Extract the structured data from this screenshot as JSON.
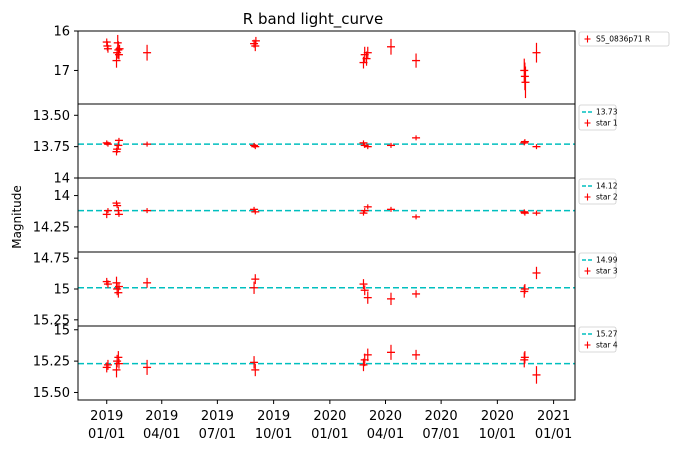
{
  "chart_data": {
    "type": "scatter",
    "title": "R band light_curve",
    "ylabel": "Magnitude",
    "x_ticks": [
      {
        "date": "2019-01-01",
        "label": [
          "2019",
          "01/01"
        ]
      },
      {
        "date": "2019-04-01",
        "label": [
          "2019",
          "04/01"
        ]
      },
      {
        "date": "2019-07-01",
        "label": [
          "2019",
          "07/01"
        ]
      },
      {
        "date": "2019-10-01",
        "label": [
          "2019",
          "10/01"
        ]
      },
      {
        "date": "2020-01-01",
        "label": [
          "2020",
          "01/01"
        ]
      },
      {
        "date": "2020-04-01",
        "label": [
          "2020",
          "04/01"
        ]
      },
      {
        "date": "2020-07-01",
        "label": [
          "2020",
          "07/01"
        ]
      },
      {
        "date": "2020-10-01",
        "label": [
          "2020",
          "10/01"
        ]
      },
      {
        "date": "2021-01-01",
        "label": [
          "2021",
          "01/01"
        ]
      }
    ],
    "xlim": [
      "2018-11-15",
      "2021-02-05"
    ],
    "y_inverted": true,
    "marker_color": "#ff0000",
    "reference_line_color": "#00bfbf",
    "panels": [
      {
        "series_name": "S5_0836p71 R",
        "reference_value": null,
        "reference_label": "",
        "ylim": [
          16.0,
          17.85
        ],
        "yticks": [
          16,
          17
        ],
        "points": [
          {
            "x": "2019-01-01",
            "y": 16.28,
            "err": 0.09
          },
          {
            "x": "2019-01-02",
            "y": 16.38,
            "err": 0.12
          },
          {
            "x": "2019-01-03",
            "y": 16.45,
            "err": 0.1
          },
          {
            "x": "2019-01-17",
            "y": 16.75,
            "err": 0.18
          },
          {
            "x": "2019-01-18",
            "y": 16.55,
            "err": 0.15
          },
          {
            "x": "2019-01-19",
            "y": 16.3,
            "err": 0.2
          },
          {
            "x": "2019-01-20",
            "y": 16.48,
            "err": 0.22
          },
          {
            "x": "2019-01-21",
            "y": 16.6,
            "err": 0.12
          },
          {
            "x": "2019-01-22",
            "y": 16.45,
            "err": 0.1
          },
          {
            "x": "2019-03-08",
            "y": 16.55,
            "err": 0.2
          },
          {
            "x": "2019-08-30",
            "y": 16.32,
            "err": 0.1
          },
          {
            "x": "2019-09-01",
            "y": 16.38,
            "err": 0.13
          },
          {
            "x": "2019-09-02",
            "y": 16.25,
            "err": 0.1
          },
          {
            "x": "2020-02-25",
            "y": 16.8,
            "err": 0.15
          },
          {
            "x": "2020-02-27",
            "y": 16.6,
            "err": 0.2
          },
          {
            "x": "2020-03-01",
            "y": 16.7,
            "err": 0.18
          },
          {
            "x": "2020-03-03",
            "y": 16.55,
            "err": 0.15
          },
          {
            "x": "2020-04-10",
            "y": 16.4,
            "err": 0.2
          },
          {
            "x": "2020-05-21",
            "y": 16.75,
            "err": 0.18
          },
          {
            "x": "2020-11-14",
            "y": 17.0,
            "err": 0.3
          },
          {
            "x": "2020-11-15",
            "y": 17.15,
            "err": 0.35
          },
          {
            "x": "2020-11-16",
            "y": 17.3,
            "err": 0.4
          },
          {
            "x": "2020-12-04",
            "y": 16.55,
            "err": 0.25
          }
        ]
      },
      {
        "series_name": "star 1",
        "reference_value": 13.73,
        "reference_label": "13.73",
        "ylim": [
          13.41,
          14.0
        ],
        "yticks": [
          13.5,
          13.75,
          14.0
        ],
        "points": [
          {
            "x": "2019-01-01",
            "y": 13.72,
            "err": 0.02
          },
          {
            "x": "2019-01-03",
            "y": 13.73,
            "err": 0.02
          },
          {
            "x": "2019-01-17",
            "y": 13.79,
            "err": 0.03
          },
          {
            "x": "2019-01-18",
            "y": 13.77,
            "err": 0.03
          },
          {
            "x": "2019-01-20",
            "y": 13.74,
            "err": 0.03
          },
          {
            "x": "2019-01-21",
            "y": 13.7,
            "err": 0.02
          },
          {
            "x": "2019-03-08",
            "y": 13.73,
            "err": 0.02
          },
          {
            "x": "2019-08-30",
            "y": 13.74,
            "err": 0.02
          },
          {
            "x": "2019-09-01",
            "y": 13.75,
            "err": 0.02
          },
          {
            "x": "2020-02-25",
            "y": 13.72,
            "err": 0.02
          },
          {
            "x": "2020-02-27",
            "y": 13.74,
            "err": 0.02
          },
          {
            "x": "2020-03-03",
            "y": 13.75,
            "err": 0.02
          },
          {
            "x": "2020-04-10",
            "y": 13.74,
            "err": 0.02
          },
          {
            "x": "2020-05-21",
            "y": 13.68,
            "err": 0.02
          },
          {
            "x": "2020-11-14",
            "y": 13.72,
            "err": 0.02
          },
          {
            "x": "2020-11-15",
            "y": 13.71,
            "err": 0.02
          },
          {
            "x": "2020-12-04",
            "y": 13.75,
            "err": 0.02
          }
        ]
      },
      {
        "series_name": "star 2",
        "reference_value": 14.12,
        "reference_label": "14.12",
        "ylim": [
          13.86,
          14.45
        ],
        "yticks": [
          14.0,
          14.25
        ],
        "points": [
          {
            "x": "2019-01-01",
            "y": 14.15,
            "err": 0.03
          },
          {
            "x": "2019-01-03",
            "y": 14.12,
            "err": 0.02
          },
          {
            "x": "2019-01-17",
            "y": 14.06,
            "err": 0.02
          },
          {
            "x": "2019-01-18",
            "y": 14.08,
            "err": 0.02
          },
          {
            "x": "2019-01-20",
            "y": 14.12,
            "err": 0.03
          },
          {
            "x": "2019-01-21",
            "y": 14.15,
            "err": 0.02
          },
          {
            "x": "2019-03-08",
            "y": 14.12,
            "err": 0.02
          },
          {
            "x": "2019-08-30",
            "y": 14.11,
            "err": 0.02
          },
          {
            "x": "2019-09-01",
            "y": 14.13,
            "err": 0.02
          },
          {
            "x": "2020-02-25",
            "y": 14.14,
            "err": 0.02
          },
          {
            "x": "2020-02-27",
            "y": 14.12,
            "err": 0.02
          },
          {
            "x": "2020-03-03",
            "y": 14.09,
            "err": 0.02
          },
          {
            "x": "2020-04-10",
            "y": 14.11,
            "err": 0.02
          },
          {
            "x": "2020-05-21",
            "y": 14.17,
            "err": 0.02
          },
          {
            "x": "2020-11-14",
            "y": 14.13,
            "err": 0.02
          },
          {
            "x": "2020-11-15",
            "y": 14.14,
            "err": 0.02
          },
          {
            "x": "2020-12-04",
            "y": 14.14,
            "err": 0.02
          }
        ]
      },
      {
        "series_name": "star 3",
        "reference_value": 14.99,
        "reference_label": "14.99",
        "ylim": [
          14.7,
          15.3
        ],
        "yticks": [
          14.75,
          15.0,
          15.25
        ],
        "points": [
          {
            "x": "2019-01-01",
            "y": 14.94,
            "err": 0.03
          },
          {
            "x": "2019-01-03",
            "y": 14.96,
            "err": 0.03
          },
          {
            "x": "2019-01-17",
            "y": 14.95,
            "err": 0.05
          },
          {
            "x": "2019-01-18",
            "y": 15.0,
            "err": 0.05
          },
          {
            "x": "2019-01-20",
            "y": 15.03,
            "err": 0.04
          },
          {
            "x": "2019-01-21",
            "y": 14.98,
            "err": 0.03
          },
          {
            "x": "2019-03-08",
            "y": 14.95,
            "err": 0.04
          },
          {
            "x": "2019-08-30",
            "y": 14.99,
            "err": 0.05
          },
          {
            "x": "2019-09-01",
            "y": 14.92,
            "err": 0.04
          },
          {
            "x": "2020-02-25",
            "y": 14.96,
            "err": 0.04
          },
          {
            "x": "2020-02-27",
            "y": 15.01,
            "err": 0.04
          },
          {
            "x": "2020-03-03",
            "y": 15.07,
            "err": 0.05
          },
          {
            "x": "2020-04-10",
            "y": 15.08,
            "err": 0.05
          },
          {
            "x": "2020-05-21",
            "y": 15.04,
            "err": 0.03
          },
          {
            "x": "2020-11-14",
            "y": 15.02,
            "err": 0.05
          },
          {
            "x": "2020-11-15",
            "y": 15.0,
            "err": 0.04
          },
          {
            "x": "2020-12-04",
            "y": 14.87,
            "err": 0.05
          }
        ]
      },
      {
        "series_name": "star 4",
        "reference_value": 15.27,
        "reference_label": "15.27",
        "ylim": [
          14.97,
          15.56
        ],
        "yticks": [
          15.0,
          15.25,
          15.5
        ],
        "points": [
          {
            "x": "2019-01-01",
            "y": 15.3,
            "err": 0.04
          },
          {
            "x": "2019-01-03",
            "y": 15.28,
            "err": 0.04
          },
          {
            "x": "2019-01-17",
            "y": 15.32,
            "err": 0.06
          },
          {
            "x": "2019-01-18",
            "y": 15.25,
            "err": 0.05
          },
          {
            "x": "2019-01-20",
            "y": 15.22,
            "err": 0.05
          },
          {
            "x": "2019-01-21",
            "y": 15.27,
            "err": 0.04
          },
          {
            "x": "2019-03-08",
            "y": 15.3,
            "err": 0.06
          },
          {
            "x": "2019-08-30",
            "y": 15.26,
            "err": 0.05
          },
          {
            "x": "2019-09-01",
            "y": 15.32,
            "err": 0.05
          },
          {
            "x": "2020-02-25",
            "y": 15.28,
            "err": 0.05
          },
          {
            "x": "2020-02-27",
            "y": 15.24,
            "err": 0.05
          },
          {
            "x": "2020-03-03",
            "y": 15.2,
            "err": 0.05
          },
          {
            "x": "2020-04-10",
            "y": 15.18,
            "err": 0.06
          },
          {
            "x": "2020-05-21",
            "y": 15.2,
            "err": 0.04
          },
          {
            "x": "2020-11-14",
            "y": 15.24,
            "err": 0.06
          },
          {
            "x": "2020-11-15",
            "y": 15.22,
            "err": 0.05
          },
          {
            "x": "2020-12-04",
            "y": 15.36,
            "err": 0.07
          }
        ]
      }
    ]
  }
}
